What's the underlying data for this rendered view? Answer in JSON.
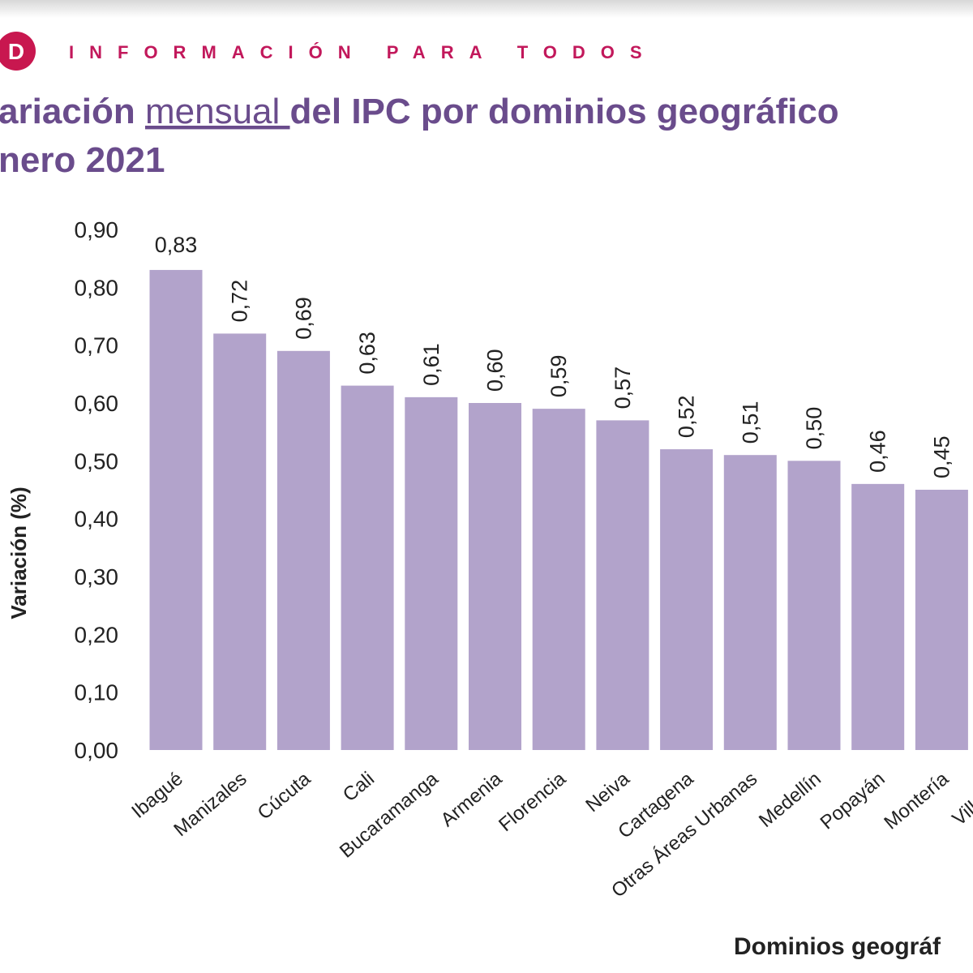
{
  "header": {
    "brand": "INFORMACIÓN PARA TODOS"
  },
  "chart_data": {
    "type": "bar",
    "title": {
      "before": "ariación ",
      "underlined": "mensual ",
      "after": "del IPC por dominios geográfico"
    },
    "title_line2": "nero 2021",
    "y_label": "Variación (%)",
    "x_label": "Dominios geográf",
    "categories": [
      "Ibagué",
      "Manizales",
      "Cúcuta",
      "Cali",
      "Bucaramanga",
      "Armenia",
      "Florencia",
      "Neiva",
      "Cartagena",
      "Otras Áreas Urbanas",
      "Medellín",
      "Popayán",
      "Montería",
      "Villavice"
    ],
    "values": [
      0.83,
      0.72,
      0.69,
      0.63,
      0.61,
      0.6,
      0.59,
      0.57,
      0.52,
      0.51,
      0.5,
      0.46,
      0.45,
      null
    ],
    "value_labels": [
      "0,83",
      "0,72",
      "0,69",
      "0,63",
      "0,61",
      "0,60",
      "0,59",
      "0,57",
      "0,52",
      "0,51",
      "0,50",
      "0,46",
      "0,45",
      null
    ],
    "color": "#b2a3cb",
    "ylim": [
      0,
      0.9
    ],
    "yticks": [
      {
        "value": 0,
        "label": "0,00"
      },
      {
        "value": 0.1,
        "label": "0,10"
      },
      {
        "value": 0.2,
        "label": "0,20"
      },
      {
        "value": 0.3,
        "label": "0,30"
      },
      {
        "value": 0.4,
        "label": "0,40"
      },
      {
        "value": 0.5,
        "label": "0,50"
      },
      {
        "value": 0.6,
        "label": "0,60"
      },
      {
        "value": 0.7,
        "label": "0,70"
      },
      {
        "value": 0.8,
        "label": "0,80"
      },
      {
        "value": 0.9,
        "label": "0,90"
      }
    ],
    "grid": false
  }
}
